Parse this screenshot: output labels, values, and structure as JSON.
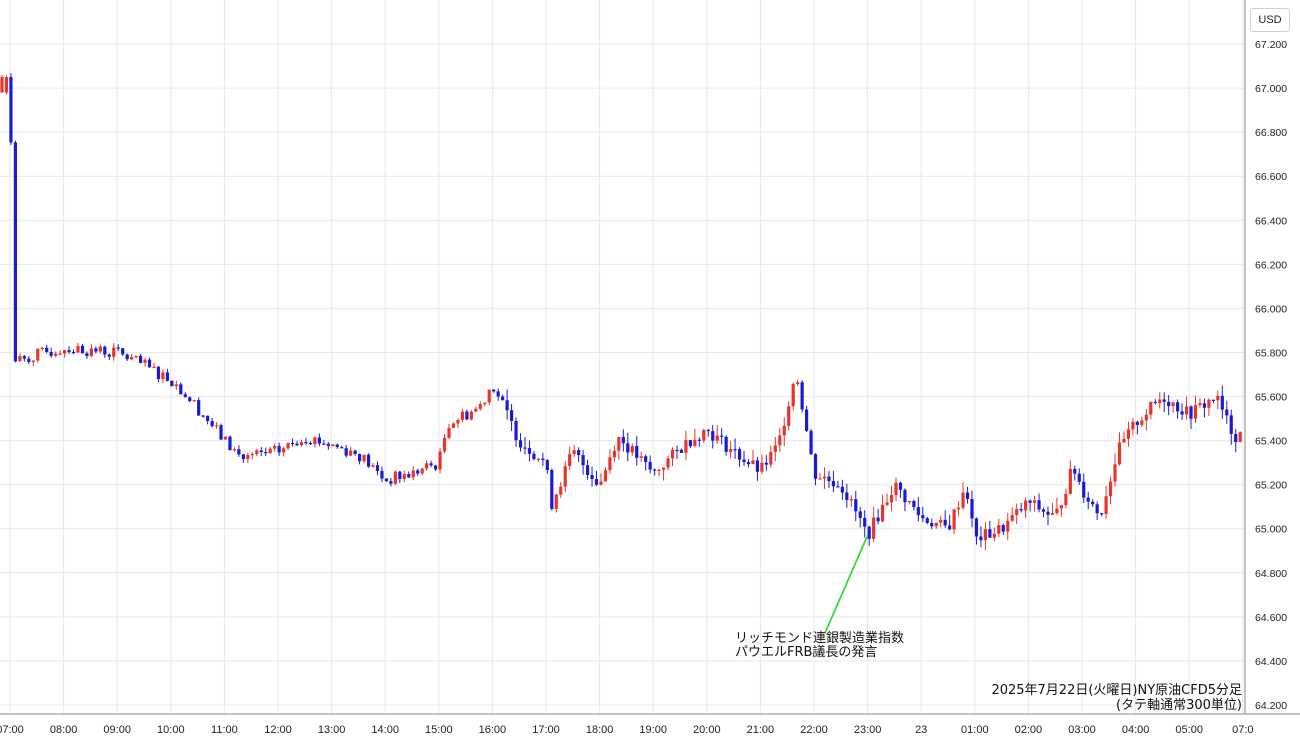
{
  "chart": {
    "currency_label": "USD",
    "caption_line1": "2025年7月22日(火曜日)NY原油CFD5分足",
    "caption_line2": "(タテ軸通常300単位)",
    "annotation_line1": "リッチモンド連銀製造業指数",
    "annotation_line2": "パウエルFRB議長の発言",
    "colors": {
      "up": "#e8352c",
      "down": "#1a1ad6",
      "grid": "#e4e9f0",
      "annotation_line": "#33dd33",
      "axis_text": "#222222"
    }
  },
  "chart_data": {
    "type": "candlestick",
    "title": "2025年7月22日(火曜日)NY原油CFD5分足",
    "y_axis": {
      "ticks": [
        "67.200",
        "67.000",
        "66.800",
        "66.600",
        "66.400",
        "66.200",
        "66.000",
        "65.800",
        "65.600",
        "65.400",
        "65.200",
        "65.000",
        "64.800",
        "64.600",
        "64.400",
        "64.200"
      ],
      "range": [
        64.2,
        67.2
      ],
      "position": "right"
    },
    "x_axis": {
      "ticks": [
        "07:00",
        "08:00",
        "09:00",
        "10:00",
        "11:00",
        "12:00",
        "13:00",
        "14:00",
        "15:00",
        "16:00",
        "17:00",
        "18:00",
        "19:00",
        "20:00",
        "21:00",
        "22:00",
        "23:00",
        "23",
        "01:00",
        "02:00",
        "03:00",
        "04:00",
        "05:00",
        "07:0"
      ]
    },
    "grid": true,
    "annotations": [
      {
        "text": [
          "リッチモンド連銀製造業指数",
          "パウエルFRB議長の発言"
        ],
        "time": "23:00",
        "price": 64.97
      }
    ],
    "candle_anchors": [
      {
        "time": "07:00",
        "price": 67.05
      },
      {
        "time": "07:05",
        "price": 65.76
      },
      {
        "time": "08:00",
        "price": 65.82
      },
      {
        "time": "09:00",
        "price": 65.8
      },
      {
        "time": "10:00",
        "price": 65.68
      },
      {
        "time": "10:30",
        "price": 65.55
      },
      {
        "time": "11:00",
        "price": 65.4
      },
      {
        "time": "11:20",
        "price": 65.32
      },
      {
        "time": "12:00",
        "price": 65.35
      },
      {
        "time": "12:30",
        "price": 65.42
      },
      {
        "time": "13:00",
        "price": 65.38
      },
      {
        "time": "13:30",
        "price": 65.34
      },
      {
        "time": "14:00",
        "price": 65.22
      },
      {
        "time": "14:30",
        "price": 65.25
      },
      {
        "time": "15:00",
        "price": 65.3
      },
      {
        "time": "15:10",
        "price": 65.48
      },
      {
        "time": "15:45",
        "price": 65.55
      },
      {
        "time": "16:00",
        "price": 65.66
      },
      {
        "time": "16:30",
        "price": 65.4
      },
      {
        "time": "17:00",
        "price": 65.3
      },
      {
        "time": "17:05",
        "price": 65.1
      },
      {
        "time": "17:30",
        "price": 65.35
      },
      {
        "time": "18:00",
        "price": 65.2
      },
      {
        "time": "18:20",
        "price": 65.42
      },
      {
        "time": "19:00",
        "price": 65.25
      },
      {
        "time": "19:40",
        "price": 65.4
      },
      {
        "time": "20:00",
        "price": 65.45
      },
      {
        "time": "20:30",
        "price": 65.35
      },
      {
        "time": "21:00",
        "price": 65.26
      },
      {
        "time": "21:20",
        "price": 65.38
      },
      {
        "time": "21:40",
        "price": 65.72
      },
      {
        "time": "22:00",
        "price": 65.25
      },
      {
        "time": "22:30",
        "price": 65.2
      },
      {
        "time": "22:50",
        "price": 65.05
      },
      {
        "time": "23:00",
        "price": 64.97
      },
      {
        "time": "23:30",
        "price": 65.2
      },
      {
        "time": "00:00",
        "price": 65.05
      },
      {
        "time": "00:30",
        "price": 65.0
      },
      {
        "time": "00:50",
        "price": 65.2
      },
      {
        "time": "01:00",
        "price": 64.95
      },
      {
        "time": "01:30",
        "price": 65.0
      },
      {
        "time": "02:00",
        "price": 65.12
      },
      {
        "time": "02:30",
        "price": 65.05
      },
      {
        "time": "02:50",
        "price": 65.28
      },
      {
        "time": "03:00",
        "price": 65.18
      },
      {
        "time": "03:20",
        "price": 65.06
      },
      {
        "time": "03:40",
        "price": 65.35
      },
      {
        "time": "04:00",
        "price": 65.48
      },
      {
        "time": "04:30",
        "price": 65.6
      },
      {
        "time": "05:00",
        "price": 65.52
      },
      {
        "time": "05:30",
        "price": 65.6
      },
      {
        "time": "05:50",
        "price": 65.42
      },
      {
        "time": "06:30",
        "price": 65.47
      }
    ]
  }
}
